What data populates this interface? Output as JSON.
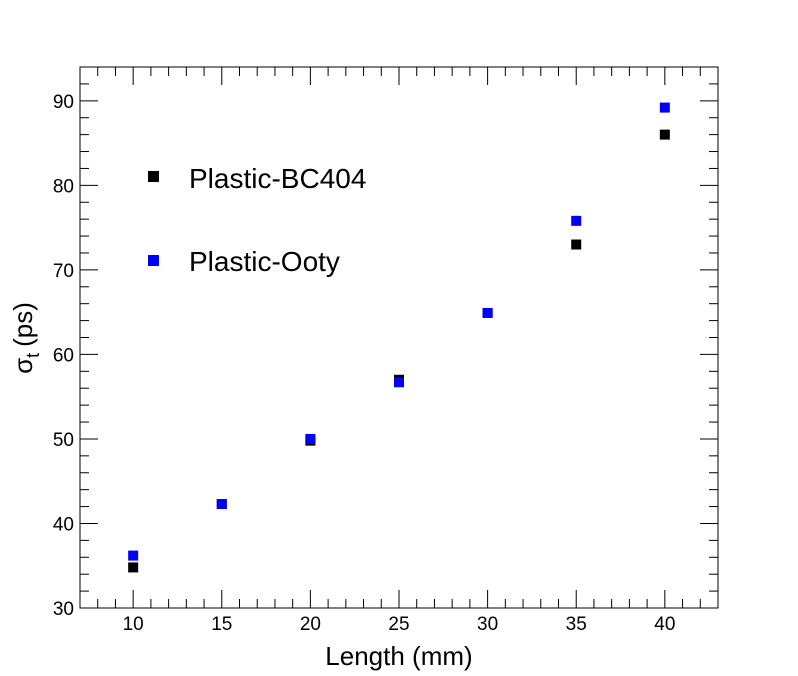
{
  "chart_data": {
    "type": "scatter",
    "xlabel": "Length (mm)",
    "ylabel": "σ",
    "ylabel_subscript": "t",
    "ylabel_unit": "(ps)",
    "xlim": [
      7,
      43
    ],
    "ylim": [
      30,
      94
    ],
    "x_ticks": [
      10,
      15,
      20,
      25,
      30,
      35,
      40
    ],
    "y_ticks": [
      30,
      40,
      50,
      60,
      70,
      80,
      90
    ],
    "grid": false,
    "legend_position": "top-left",
    "series": [
      {
        "name": "Plastic-BC404",
        "color": "#000000",
        "marker": "square",
        "points": [
          {
            "x": 10,
            "y": 34.8
          },
          {
            "x": 15,
            "y": 42.3
          },
          {
            "x": 20,
            "y": 49.8
          },
          {
            "x": 25,
            "y": 57.0
          },
          {
            "x": 30,
            "y": 64.9
          },
          {
            "x": 35,
            "y": 73.0
          },
          {
            "x": 40,
            "y": 86.0
          }
        ]
      },
      {
        "name": "Plastic-Ooty",
        "color": "#0000ff",
        "marker": "square",
        "points": [
          {
            "x": 10,
            "y": 36.2
          },
          {
            "x": 15,
            "y": 42.3
          },
          {
            "x": 20,
            "y": 50.0
          },
          {
            "x": 25,
            "y": 56.7
          },
          {
            "x": 30,
            "y": 64.9
          },
          {
            "x": 35,
            "y": 75.8
          },
          {
            "x": 40,
            "y": 89.2
          }
        ]
      }
    ]
  }
}
